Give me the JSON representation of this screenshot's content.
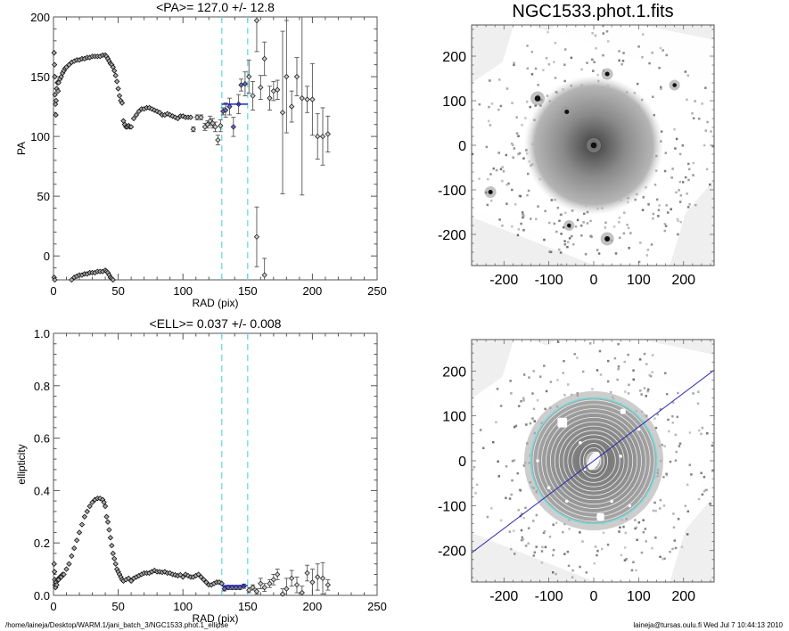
{
  "footer": {
    "path": "/home/laineja/Desktop/WARM.1/jani_batch_3/NGC1533.phot.1_ellipse",
    "user_date": "laineja@tursas.oulu.fi  Wed Jul  7 10:44:13 2010"
  },
  "chart_data": [
    {
      "type": "scatter",
      "id": "pa",
      "title": "<PA>= 127.0 +/-  12.8",
      "xlabel": "RAD (pix)",
      "ylabel": "PA",
      "xlim": [
        0,
        250
      ],
      "ylim": [
        -20,
        200
      ],
      "xticks": [
        "0",
        "50",
        "100",
        "150",
        "200",
        "250"
      ],
      "xtick_values": [
        0,
        50,
        100,
        150,
        200,
        250
      ],
      "yticks": [
        "0",
        "50",
        "100",
        "150",
        "200"
      ],
      "ytick_values": [
        0,
        50,
        100,
        150,
        200
      ],
      "fit_range": [
        130,
        150
      ],
      "mean": 127.0,
      "mean_err": 12.8,
      "colors": {
        "points": "#000000",
        "fit": "#2020c0",
        "range": "#60e0e0"
      },
      "points": [
        [
          0.5,
          170
        ],
        [
          0.8,
          160
        ],
        [
          1,
          150
        ],
        [
          1.2,
          135
        ],
        [
          1.5,
          127
        ],
        [
          1.8,
          118
        ],
        [
          2,
          130
        ],
        [
          2.5,
          140
        ],
        [
          3,
          145
        ],
        [
          3.5,
          138
        ],
        [
          4,
          145
        ],
        [
          5,
          148
        ],
        [
          6,
          150
        ],
        [
          7,
          153
        ],
        [
          8,
          155
        ],
        [
          9,
          157
        ],
        [
          10,
          158
        ],
        [
          12,
          160
        ],
        [
          14,
          162
        ],
        [
          16,
          163
        ],
        [
          18,
          164
        ],
        [
          20,
          164
        ],
        [
          22,
          165
        ],
        [
          24,
          165
        ],
        [
          26,
          166
        ],
        [
          28,
          166
        ],
        [
          30,
          167
        ],
        [
          32,
          167
        ],
        [
          34,
          167
        ],
        [
          36,
          167
        ],
        [
          38,
          168
        ],
        [
          40,
          168
        ],
        [
          41,
          167
        ],
        [
          42,
          165
        ],
        [
          43,
          163
        ],
        [
          44,
          161
        ],
        [
          45,
          160
        ],
        [
          46,
          158
        ],
        [
          47,
          155
        ],
        [
          48,
          151
        ],
        [
          49,
          146
        ],
        [
          50,
          140
        ],
        [
          51,
          134
        ],
        [
          52,
          130
        ],
        [
          53,
          128
        ],
        [
          54,
          113
        ],
        [
          55,
          110
        ],
        [
          56,
          108
        ],
        [
          57,
          108
        ],
        [
          58,
          109
        ],
        [
          59,
          108
        ],
        [
          60,
          108
        ],
        [
          62,
          115
        ],
        [
          64,
          118
        ],
        [
          66,
          121
        ],
        [
          68,
          123
        ],
        [
          70,
          123
        ],
        [
          72,
          124
        ],
        [
          74,
          124
        ],
        [
          76,
          123
        ],
        [
          78,
          122
        ],
        [
          80,
          121
        ],
        [
          82,
          120
        ],
        [
          84,
          118
        ],
        [
          86,
          118
        ],
        [
          88,
          119
        ],
        [
          90,
          118
        ],
        [
          92,
          117
        ],
        [
          94,
          116
        ],
        [
          96,
          115
        ],
        [
          98,
          117
        ],
        [
          100,
          117
        ],
        [
          102,
          116
        ],
        [
          104,
          116
        ],
        [
          106,
          116
        ]
      ],
      "lower_branch": [
        [
          0.5,
          -18
        ],
        [
          1,
          -20
        ],
        [
          14,
          -20
        ],
        [
          16,
          -18
        ],
        [
          18,
          -17
        ],
        [
          20,
          -16
        ],
        [
          22,
          -16
        ],
        [
          24,
          -15
        ],
        [
          26,
          -15
        ],
        [
          28,
          -14
        ],
        [
          30,
          -14
        ],
        [
          32,
          -14
        ],
        [
          34,
          -13
        ],
        [
          36,
          -13
        ],
        [
          38,
          -13
        ],
        [
          40,
          -12
        ],
        [
          41,
          -13
        ],
        [
          42,
          -14
        ],
        [
          43,
          -16
        ],
        [
          44,
          -18
        ],
        [
          45,
          -19
        ],
        [
          46,
          -20
        ]
      ],
      "err_points": [
        [
          108,
          106,
          2
        ],
        [
          111,
          116,
          2
        ],
        [
          114,
          116,
          2
        ],
        [
          117,
          108,
          3
        ],
        [
          119,
          110,
          3
        ],
        [
          121,
          113,
          4
        ],
        [
          123,
          111,
          4
        ],
        [
          125,
          108,
          4
        ],
        [
          127,
          97,
          4
        ],
        [
          129,
          109,
          5
        ],
        [
          151,
          150,
          14
        ],
        [
          154,
          134,
          12
        ],
        [
          157,
          197,
          26
        ],
        [
          157,
          16,
          25
        ],
        [
          160,
          141,
          10
        ],
        [
          163,
          165,
          14
        ],
        [
          163,
          -16,
          14
        ],
        [
          167,
          132,
          10
        ],
        [
          170,
          138,
          8
        ],
        [
          173,
          139,
          8
        ],
        [
          177,
          120,
          68
        ],
        [
          180,
          150,
          47
        ],
        [
          184,
          125,
          13
        ],
        [
          188,
          150,
          16
        ],
        [
          192,
          132,
          81
        ],
        [
          196,
          131,
          11
        ],
        [
          200,
          131,
          30
        ],
        [
          204,
          100,
          19
        ],
        [
          208,
          100,
          24
        ],
        [
          212,
          102,
          15
        ]
      ],
      "fit_points": [
        [
          131,
          121,
          3
        ],
        [
          133,
          122,
          6
        ],
        [
          136,
          125,
          7
        ],
        [
          139,
          108,
          8
        ],
        [
          143,
          127,
          8
        ],
        [
          145,
          143,
          5
        ],
        [
          148,
          144,
          10
        ]
      ]
    },
    {
      "type": "scatter",
      "id": "ell",
      "title": "<ELL>= 0.037 +/-  0.008",
      "xlabel": "RAD (pix)",
      "ylabel": "ellipticity",
      "xlim": [
        0,
        250
      ],
      "ylim": [
        0,
        1
      ],
      "xticks": [
        "0",
        "50",
        "100",
        "150",
        "200",
        "250"
      ],
      "xtick_values": [
        0,
        50,
        100,
        150,
        200,
        250
      ],
      "yticks": [
        "0.0",
        "0.2",
        "0.4",
        "0.6",
        "0.8",
        "1.0"
      ],
      "ytick_values": [
        0,
        0.2,
        0.4,
        0.6,
        0.8,
        1.0
      ],
      "fit_range": [
        130,
        150
      ],
      "mean": 0.037,
      "mean_err": 0.008,
      "points": [
        [
          0.5,
          0.12
        ],
        [
          0.8,
          0.09
        ],
        [
          1,
          0.06
        ],
        [
          1.3,
          0.04
        ],
        [
          1.6,
          0.03
        ],
        [
          2,
          0.05
        ],
        [
          2.5,
          0.04
        ],
        [
          3,
          0.06
        ],
        [
          4,
          0.06
        ],
        [
          5,
          0.07
        ],
        [
          6,
          0.07
        ],
        [
          7,
          0.08
        ],
        [
          8,
          0.08
        ],
        [
          10,
          0.1
        ],
        [
          12,
          0.12
        ],
        [
          14,
          0.15
        ],
        [
          16,
          0.18
        ],
        [
          18,
          0.21
        ],
        [
          20,
          0.24
        ],
        [
          22,
          0.27
        ],
        [
          24,
          0.3
        ],
        [
          26,
          0.32
        ],
        [
          28,
          0.34
        ],
        [
          30,
          0.355
        ],
        [
          32,
          0.365
        ],
        [
          34,
          0.37
        ],
        [
          36,
          0.37
        ],
        [
          38,
          0.365
        ],
        [
          39,
          0.355
        ],
        [
          40,
          0.34
        ],
        [
          41,
          0.3
        ],
        [
          42,
          0.28
        ],
        [
          43,
          0.25
        ],
        [
          44,
          0.22
        ],
        [
          45,
          0.19
        ],
        [
          46,
          0.16
        ],
        [
          47,
          0.14
        ],
        [
          48,
          0.12
        ],
        [
          49,
          0.1
        ],
        [
          50,
          0.09
        ],
        [
          51,
          0.08
        ],
        [
          52,
          0.07
        ],
        [
          53,
          0.06
        ],
        [
          54,
          0.055
        ],
        [
          56,
          0.06
        ],
        [
          58,
          0.065
        ],
        [
          60,
          0.055
        ],
        [
          62,
          0.065
        ],
        [
          64,
          0.07
        ],
        [
          66,
          0.075
        ],
        [
          68,
          0.08
        ],
        [
          70,
          0.085
        ],
        [
          72,
          0.085
        ],
        [
          74,
          0.085
        ],
        [
          76,
          0.09
        ],
        [
          78,
          0.095
        ],
        [
          80,
          0.09
        ],
        [
          82,
          0.09
        ],
        [
          84,
          0.088
        ],
        [
          86,
          0.09
        ],
        [
          88,
          0.085
        ],
        [
          90,
          0.085
        ],
        [
          92,
          0.08
        ],
        [
          94,
          0.078
        ],
        [
          96,
          0.075
        ],
        [
          98,
          0.078
        ],
        [
          100,
          0.07
        ],
        [
          102,
          0.08
        ],
        [
          104,
          0.075
        ],
        [
          106,
          0.07
        ],
        [
          108,
          0.07
        ],
        [
          110,
          0.075
        ],
        [
          112,
          0.08
        ],
        [
          114,
          0.07
        ],
        [
          116,
          0.06
        ],
        [
          118,
          0.05
        ],
        [
          120,
          0.04
        ],
        [
          122,
          0.04
        ],
        [
          124,
          0.045
        ],
        [
          126,
          0.05
        ],
        [
          128,
          0.05
        ],
        [
          130,
          0.045
        ]
      ],
      "err_points": [
        [
          151,
          0.02,
          0.01
        ],
        [
          154,
          0.03,
          0.01
        ],
        [
          157,
          0.015,
          0.01
        ],
        [
          160,
          0.045,
          0.02
        ],
        [
          163,
          0.03,
          0.015
        ],
        [
          167,
          0.045,
          0.015
        ],
        [
          170,
          0.06,
          0.02
        ],
        [
          173,
          0.08,
          0.02
        ],
        [
          177,
          0.005,
          0.02
        ],
        [
          180,
          0.025,
          0.04
        ],
        [
          184,
          0.065,
          0.03
        ],
        [
          188,
          0.04,
          0.03
        ],
        [
          192,
          0.01,
          0.025
        ],
        [
          196,
          0.085,
          0.03
        ],
        [
          200,
          0.05,
          0.05
        ],
        [
          204,
          0.07,
          0.05
        ],
        [
          208,
          0.065,
          0.06
        ],
        [
          212,
          0.04,
          0.02
        ]
      ],
      "fit_points": [
        [
          132,
          0.025,
          0.008
        ],
        [
          135,
          0.03,
          0.008
        ],
        [
          138,
          0.03,
          0.008
        ],
        [
          141,
          0.03,
          0.008
        ],
        [
          144,
          0.03,
          0.008
        ],
        [
          147,
          0.035,
          0.008
        ]
      ]
    }
  ],
  "images": [
    {
      "title": "NGC1533.phot.1.fits",
      "ticks": [
        "-200",
        "-100",
        "0",
        "100",
        "200"
      ],
      "tick_values": [
        -200,
        -100,
        0,
        100,
        200
      ],
      "lim": [
        -270,
        270
      ]
    },
    {
      "title": "",
      "ticks": [
        "-200",
        "-100",
        "0",
        "100",
        "200"
      ],
      "tick_values": [
        -200,
        -100,
        0,
        100,
        200
      ],
      "lim": [
        -270,
        270
      ],
      "fit_circle_radius": 140,
      "pa_line_angle_deg": 127.0,
      "colors": {
        "circle": "#70dada",
        "line": "#2a2ab0"
      }
    }
  ]
}
